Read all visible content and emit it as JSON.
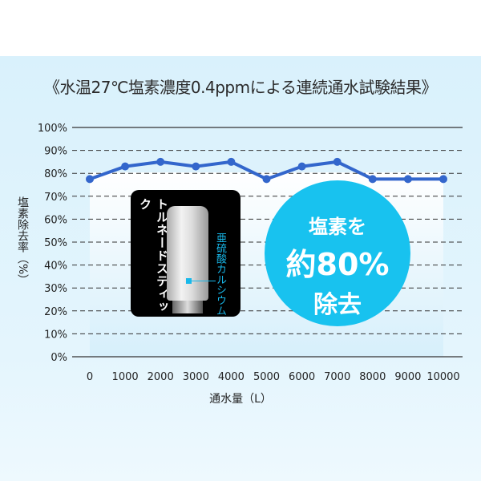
{
  "chart_data": {
    "type": "line",
    "title": "《水温27℃塩素濃度0.4ppmによる連続通水試験結果》",
    "xlabel": "通水量（L）",
    "ylabel": "塩素除去率（%）",
    "x": [
      0,
      1000,
      2000,
      3000,
      4000,
      5000,
      6000,
      7000,
      8000,
      9000,
      10000
    ],
    "x_tick_labels": [
      "0",
      "1000",
      "2000",
      "3000",
      "4000",
      "5000",
      "6000",
      "7000",
      "8000",
      "9000",
      "10000"
    ],
    "y_tick_labels": [
      "0%",
      "10%",
      "20%",
      "30%",
      "40%",
      "50%",
      "60%",
      "70%",
      "80%",
      "90%",
      "100%"
    ],
    "series": [
      {
        "values": [
          77.5,
          83,
          85,
          83,
          85,
          77.5,
          83,
          85,
          77.5,
          77.5,
          77.5
        ],
        "color": "#3366cc"
      }
    ],
    "ylim": [
      0,
      100
    ],
    "grid": "horizontal dashed"
  },
  "product": {
    "name": "トルネードスティック",
    "material": "亜硫酸カルシウム"
  },
  "badge": {
    "line1": "塩素を",
    "line2": "約80%",
    "line3": "除去",
    "color": "#18c2ef"
  }
}
